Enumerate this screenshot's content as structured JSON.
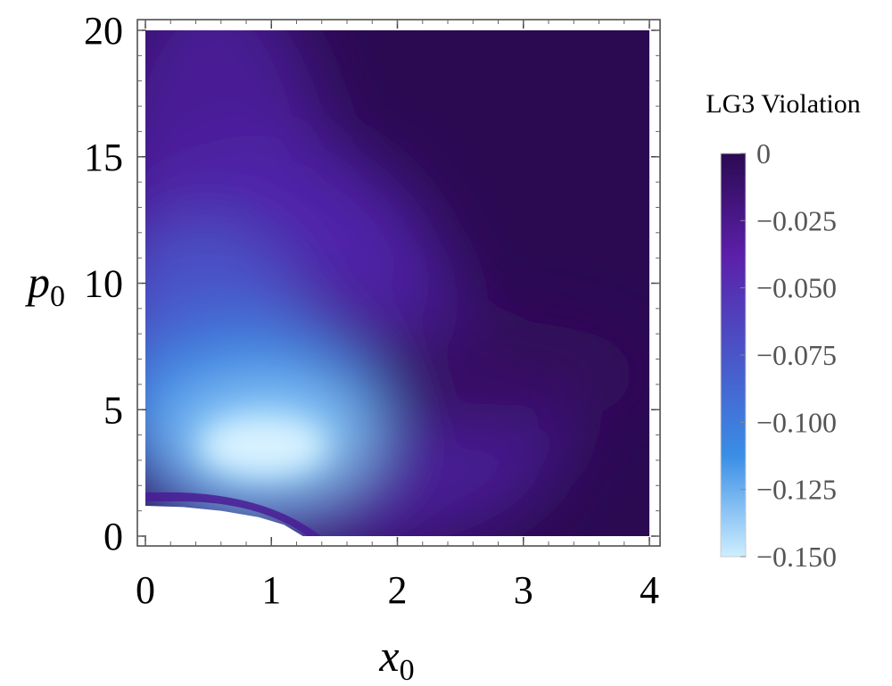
{
  "chart_data": {
    "type": "heatmap",
    "xlabel": {
      "main": "x",
      "sub": "0"
    },
    "ylabel": {
      "main": "p",
      "sub": "0"
    },
    "xlim": [
      0,
      4
    ],
    "ylim": [
      0,
      20
    ],
    "x_ticks": [
      "0",
      "1",
      "2",
      "3",
      "4"
    ],
    "x_tick_values": [
      0,
      1,
      2,
      3,
      4
    ],
    "y_ticks": [
      "0",
      "5",
      "10",
      "15",
      "20"
    ],
    "y_tick_values": [
      0,
      5,
      10,
      15,
      20
    ],
    "grid": false,
    "colorbar": {
      "title": "LG3 Violation",
      "range": [
        -0.15,
        0
      ],
      "tick_labels": [
        "0",
        "−0.025",
        "−0.050",
        "−0.075",
        "−0.100",
        "−0.125",
        "−0.150"
      ],
      "tick_values": [
        0,
        -0.025,
        -0.05,
        -0.075,
        -0.1,
        -0.125,
        -0.15
      ],
      "colors": [
        "#2b0a52",
        "#5b1fa8",
        "#4a55c8",
        "#3a8ee6",
        "#cdeeff"
      ],
      "placement": "right"
    },
    "excluded_region": {
      "description_points_x": [
        0,
        0.3,
        0.6,
        0.9,
        1.1,
        1.25
      ],
      "description_points_p": [
        1.2,
        1.15,
        1.0,
        0.75,
        0.45,
        0.0
      ]
    },
    "min_point": {
      "x0": 0.9,
      "p0": 3.3,
      "value": -0.15
    }
  }
}
